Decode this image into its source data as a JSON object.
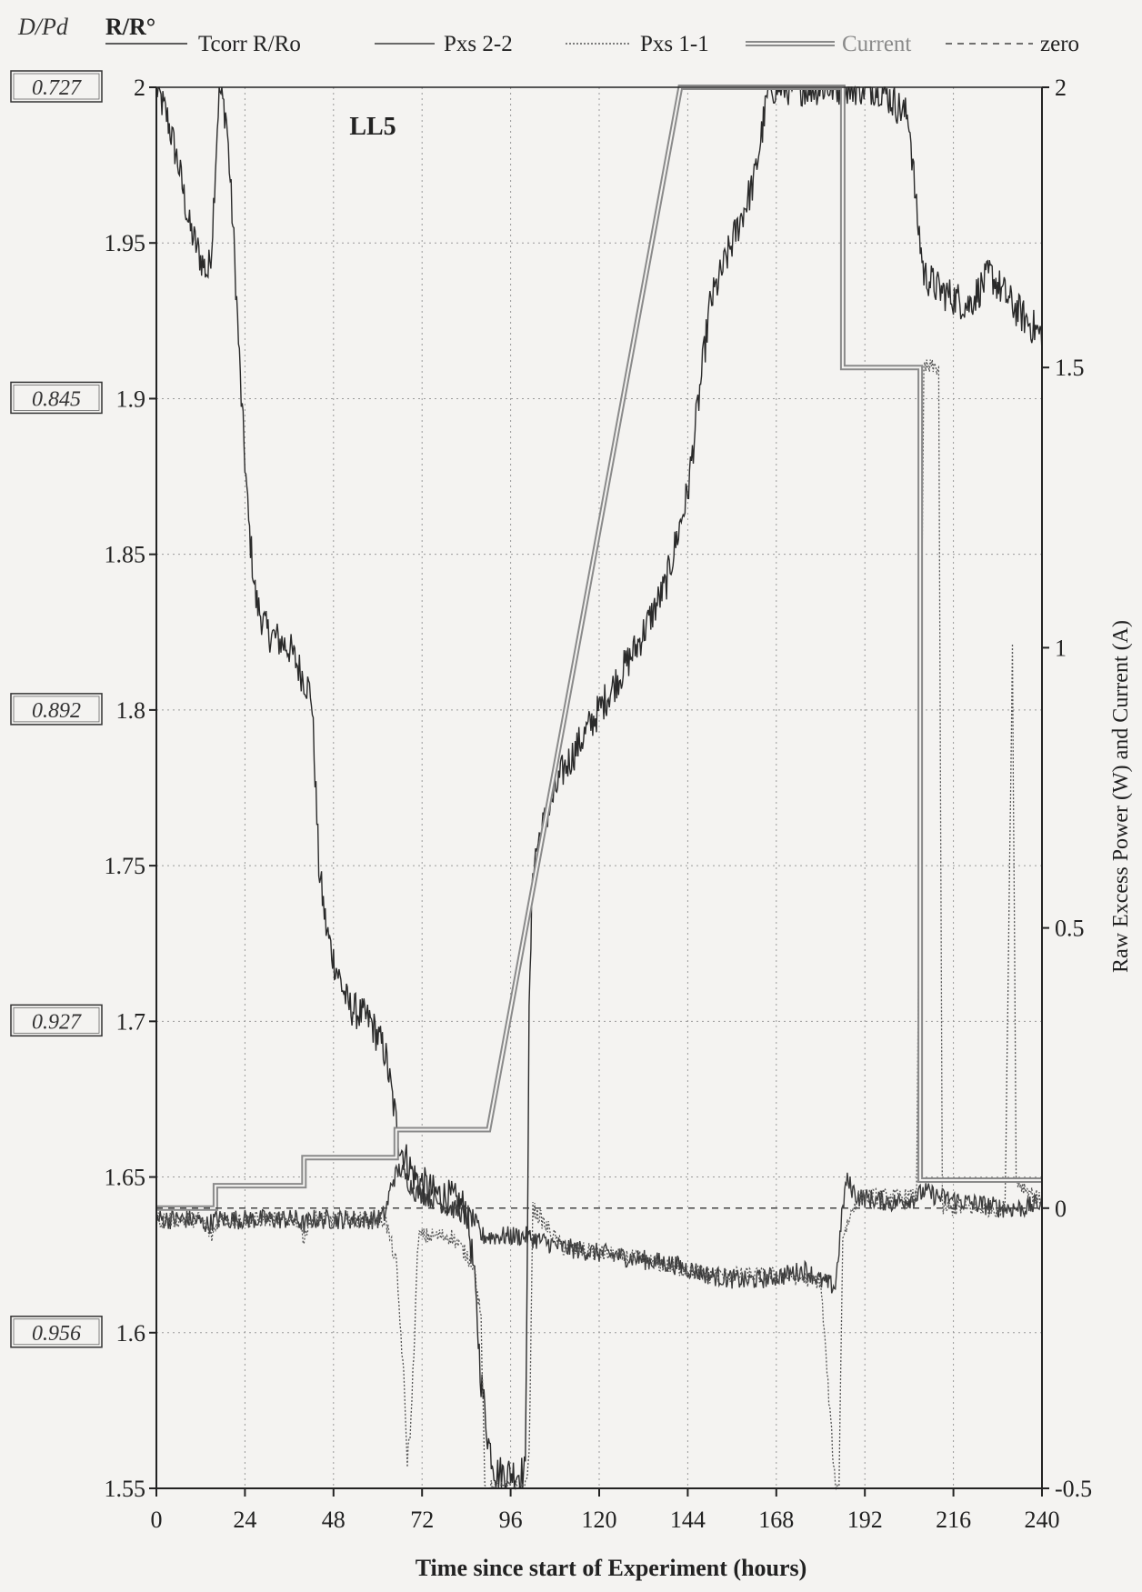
{
  "chart_data": {
    "type": "line",
    "title": "LL5",
    "xlabel": "Time since start of Experiment (hours)",
    "ylabel_left_outer": "D/Pd",
    "ylabel_left": "R/R°",
    "ylabel_right": "Raw Excess Power (W) and Current (A)",
    "xlim": [
      0,
      240
    ],
    "ylim_left": [
      1.55,
      2.0
    ],
    "ylim_right": [
      -0.5,
      2.0
    ],
    "x_ticks": [
      "0",
      "24",
      "48",
      "72",
      "96",
      "120",
      "144",
      "168",
      "192",
      "216",
      "240"
    ],
    "y_left_ticks": [
      "1.55",
      "1.6",
      "1.65",
      "1.7",
      "1.75",
      "1.8",
      "1.85",
      "1.9",
      "1.95",
      "2"
    ],
    "y_right_ticks": [
      "-0.5",
      "0",
      "0.5",
      "1",
      "1.5",
      "2"
    ],
    "dpd_labels": [
      {
        "y": 2.0,
        "label": "0.727"
      },
      {
        "y": 1.9,
        "label": "0.845"
      },
      {
        "y": 1.8,
        "label": "0.892"
      },
      {
        "y": 1.7,
        "label": "0.927"
      },
      {
        "y": 1.6,
        "label": "0.956"
      }
    ],
    "grid": true,
    "legend_position": "top",
    "series": [
      {
        "name": "Tcorr R/Ro",
        "axis": "left",
        "style": "solid",
        "color": "#2a2a2a",
        "noise": 0.006,
        "points": [
          [
            0,
            2.0
          ],
          [
            3,
            1.99
          ],
          [
            6,
            1.975
          ],
          [
            9,
            1.955
          ],
          [
            12,
            1.945
          ],
          [
            14,
            1.94
          ],
          [
            15,
            1.95
          ],
          [
            17,
            2.0
          ],
          [
            19,
            1.99
          ],
          [
            21,
            1.95
          ],
          [
            23,
            1.9
          ],
          [
            25,
            1.86
          ],
          [
            27,
            1.835
          ],
          [
            30,
            1.825
          ],
          [
            36,
            1.82
          ],
          [
            40,
            1.81
          ],
          [
            42,
            1.805
          ],
          [
            43,
            1.78
          ],
          [
            44,
            1.75
          ],
          [
            46,
            1.73
          ],
          [
            48,
            1.72
          ],
          [
            52,
            1.705
          ],
          [
            58,
            1.7
          ],
          [
            62,
            1.69
          ],
          [
            64,
            1.675
          ],
          [
            66,
            1.66
          ],
          [
            70,
            1.65
          ],
          [
            75,
            1.645
          ],
          [
            80,
            1.643
          ],
          [
            84,
            1.64
          ],
          [
            86,
            1.62
          ],
          [
            88,
            1.585
          ],
          [
            90,
            1.565
          ],
          [
            92,
            1.555
          ],
          [
            96,
            1.555
          ],
          [
            100,
            1.555
          ],
          [
            101,
            1.7
          ],
          [
            102,
            1.75
          ],
          [
            104,
            1.76
          ],
          [
            110,
            1.78
          ],
          [
            120,
            1.8
          ],
          [
            130,
            1.82
          ],
          [
            138,
            1.84
          ],
          [
            144,
            1.87
          ],
          [
            150,
            1.93
          ],
          [
            156,
            1.95
          ],
          [
            162,
            1.97
          ],
          [
            166,
            2.0
          ],
          [
            168,
            2.0
          ],
          [
            180,
            2.0
          ],
          [
            188,
            2.0
          ],
          [
            196,
            2.0
          ],
          [
            204,
            1.99
          ],
          [
            206,
            1.96
          ],
          [
            208,
            1.94
          ],
          [
            212,
            1.935
          ],
          [
            220,
            1.93
          ],
          [
            226,
            1.94
          ],
          [
            232,
            1.93
          ],
          [
            236,
            1.925
          ],
          [
            240,
            1.92
          ]
        ]
      },
      {
        "name": "Pxs 2-2",
        "axis": "right",
        "style": "solid",
        "color": "#3a3a3a",
        "noise": 0.018,
        "points": [
          [
            0,
            -0.02
          ],
          [
            10,
            -0.02
          ],
          [
            14,
            -0.03
          ],
          [
            16,
            -0.02
          ],
          [
            38,
            -0.02
          ],
          [
            40,
            -0.03
          ],
          [
            42,
            -0.02
          ],
          [
            60,
            -0.02
          ],
          [
            62,
            -0.01
          ],
          [
            64,
            0.05
          ],
          [
            66,
            0.07
          ],
          [
            70,
            0.03
          ],
          [
            80,
            0.0
          ],
          [
            86,
            -0.02
          ],
          [
            88,
            -0.05
          ],
          [
            90,
            -0.05
          ],
          [
            100,
            -0.05
          ],
          [
            110,
            -0.07
          ],
          [
            120,
            -0.08
          ],
          [
            130,
            -0.09
          ],
          [
            140,
            -0.1
          ],
          [
            150,
            -0.12
          ],
          [
            160,
            -0.13
          ],
          [
            170,
            -0.12
          ],
          [
            176,
            -0.11
          ],
          [
            180,
            -0.13
          ],
          [
            184,
            -0.14
          ],
          [
            186,
            0.0
          ],
          [
            187,
            0.05
          ],
          [
            190,
            0.02
          ],
          [
            200,
            0.01
          ],
          [
            206,
            0.02
          ],
          [
            208,
            0.03
          ],
          [
            212,
            0.02
          ],
          [
            220,
            0.01
          ],
          [
            230,
            0.0
          ],
          [
            235,
            0.0
          ],
          [
            240,
            0.01
          ]
        ]
      },
      {
        "name": "Pxs 1-1",
        "axis": "right",
        "style": "dotted",
        "color": "#555555",
        "noise": 0.015,
        "points": [
          [
            0,
            -0.02
          ],
          [
            12,
            -0.02
          ],
          [
            15,
            -0.05
          ],
          [
            17,
            -0.02
          ],
          [
            38,
            -0.02
          ],
          [
            40,
            -0.05
          ],
          [
            42,
            -0.02
          ],
          [
            62,
            -0.02
          ],
          [
            65,
            -0.1
          ],
          [
            67,
            -0.3
          ],
          [
            68,
            -0.45
          ],
          [
            69,
            -0.38
          ],
          [
            71,
            -0.05
          ],
          [
            80,
            -0.05
          ],
          [
            86,
            -0.1
          ],
          [
            88,
            -0.2
          ],
          [
            89,
            -0.5
          ],
          [
            96,
            -0.5
          ],
          [
            100,
            -0.5
          ],
          [
            101,
            -0.45
          ],
          [
            102,
            0.0
          ],
          [
            110,
            -0.07
          ],
          [
            130,
            -0.09
          ],
          [
            150,
            -0.12
          ],
          [
            170,
            -0.12
          ],
          [
            180,
            -0.13
          ],
          [
            184,
            -0.5
          ],
          [
            185,
            -0.5
          ],
          [
            186,
            -0.05
          ],
          [
            190,
            0.02
          ],
          [
            206,
            0.02
          ],
          [
            208,
            1.5
          ],
          [
            212,
            1.5
          ],
          [
            213,
            0.0
          ],
          [
            220,
            0.0
          ],
          [
            230,
            0.0
          ],
          [
            232,
            1.0
          ],
          [
            233,
            0.05
          ],
          [
            240,
            0.01
          ]
        ]
      },
      {
        "name": "Current",
        "axis": "right",
        "style": "double",
        "color": "#8a8a8a",
        "points": [
          [
            0,
            0.0
          ],
          [
            16,
            0.0
          ],
          [
            16,
            0.04
          ],
          [
            40,
            0.04
          ],
          [
            40,
            0.09
          ],
          [
            65,
            0.09
          ],
          [
            65,
            0.14
          ],
          [
            90,
            0.14
          ],
          [
            142,
            2.0
          ],
          [
            186,
            2.0
          ],
          [
            186,
            1.5
          ],
          [
            207,
            1.5
          ],
          [
            207,
            0.05
          ],
          [
            240,
            0.05
          ]
        ]
      },
      {
        "name": "zero",
        "axis": "right",
        "style": "dashed",
        "color": "#444444",
        "points": [
          [
            0,
            0
          ],
          [
            240,
            0
          ]
        ]
      }
    ]
  }
}
